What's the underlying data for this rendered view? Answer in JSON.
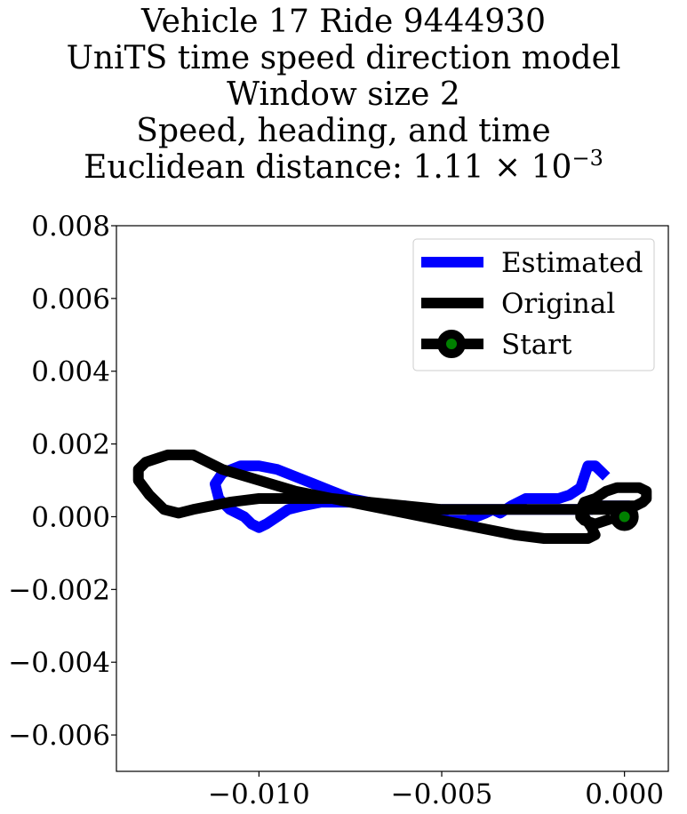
{
  "chart_data": {
    "type": "line",
    "title_lines": [
      "Vehicle 17 Ride 9444930",
      "UniTS time speed direction model",
      "Window size 2",
      "Speed, heading, and time"
    ],
    "title_metric_prefix": "Euclidean distance: 1.11",
    "title_metric_times": "×",
    "title_metric_base": "10",
    "title_metric_exponent": "−3",
    "xlabel": "",
    "ylabel": "",
    "xlim": [
      -0.0139,
      0.0012
    ],
    "ylim": [
      -0.007,
      0.008
    ],
    "x_ticks": [
      -0.01,
      -0.005,
      0.0
    ],
    "x_tick_labels": [
      "−0.010",
      "−0.005",
      "0.000"
    ],
    "y_ticks": [
      0.008,
      0.006,
      0.004,
      0.002,
      0.0,
      -0.002,
      -0.004,
      -0.006
    ],
    "y_tick_labels": [
      "0.008",
      "0.006",
      "0.004",
      "0.002",
      "0.000",
      "−0.002",
      "−0.004",
      "−0.006"
    ],
    "grid": false,
    "legend_position": "top-right",
    "series": [
      {
        "name": "Estimated",
        "color": "#0000ff",
        "x": [
          0.0,
          -0.0003,
          -0.0006,
          -0.0009,
          -0.0011,
          -0.0014,
          -0.0017,
          -0.002,
          -0.0023,
          -0.0025,
          -0.0028,
          -0.0032,
          -0.0036,
          -0.004,
          -0.0045,
          -0.005,
          -0.0055,
          -0.006,
          -0.0065,
          -0.007,
          -0.0075,
          -0.008,
          -0.0085,
          -0.009,
          -0.0095,
          -0.01,
          -0.0105,
          -0.011,
          -0.0112,
          -0.0111,
          -0.0108,
          -0.0104,
          -0.0102,
          -0.01,
          -0.0098,
          -0.0095,
          -0.0092,
          -0.0088,
          -0.0083,
          -0.0078,
          -0.0073,
          -0.0068,
          -0.0063,
          -0.0058,
          -0.0053,
          -0.0048,
          -0.0043,
          -0.0038,
          -0.0036,
          -0.0034,
          -0.0031,
          -0.0027,
          -0.0022,
          -0.0018,
          -0.0015,
          -0.0012,
          -0.0011,
          -0.001,
          -0.0008,
          -0.0006
        ],
        "y": [
          0.0003,
          0.0003,
          0.0003,
          0.0002,
          0.0002,
          0.0002,
          0.0002,
          0.0002,
          0.0002,
          0.0002,
          0.0002,
          0.0002,
          0.0002,
          0.0002,
          0.0002,
          0.0002,
          0.0002,
          0.0003,
          0.0003,
          0.0004,
          0.0005,
          0.0007,
          0.0009,
          0.0011,
          0.0013,
          0.0014,
          0.0014,
          0.0012,
          0.0009,
          0.0005,
          0.0002,
          0.0,
          -0.0002,
          -0.0003,
          -0.0002,
          0.0,
          0.0002,
          0.0003,
          0.0004,
          0.0004,
          0.0004,
          0.0003,
          0.0002,
          0.0001,
          0.0,
          -0.0001,
          -0.0001,
          0.0001,
          0.0002,
          0.0001,
          0.0003,
          0.0005,
          0.0005,
          0.0005,
          0.0006,
          0.0008,
          0.0011,
          0.0014,
          0.0014,
          0.0012
        ]
      },
      {
        "name": "Original",
        "color": "#000000",
        "x": [
          0.0,
          -0.0003,
          -0.0007,
          -0.0011,
          -0.0011,
          -0.0009,
          -0.0008,
          -0.001,
          -0.0015,
          -0.0022,
          -0.003,
          -0.004,
          -0.005,
          -0.006,
          -0.007,
          -0.008,
          -0.009,
          -0.01,
          -0.011,
          -0.0118,
          -0.0125,
          -0.0131,
          -0.0133,
          -0.0133,
          -0.013,
          -0.0126,
          -0.0122,
          -0.0118,
          -0.0113,
          -0.0108,
          -0.01,
          -0.009,
          -0.008,
          -0.007,
          -0.006,
          -0.005,
          -0.004,
          -0.003,
          -0.002,
          -0.0012,
          -0.0006,
          -0.0002,
          0.0001,
          0.0003,
          0.0005,
          0.0006,
          0.0006,
          0.0004,
          0.0001,
          -0.0002,
          -0.0005,
          -0.0008,
          -0.0011,
          -0.0012,
          -0.0012,
          -0.0011,
          -0.0008,
          -0.0005
        ],
        "y": [
          0.0003,
          0.0003,
          0.0003,
          0.0002,
          0.0,
          -0.0003,
          -0.0005,
          -0.0006,
          -0.0006,
          -0.0006,
          -0.0005,
          -0.0003,
          -0.0001,
          0.0001,
          0.0003,
          0.0005,
          0.0007,
          0.001,
          0.0013,
          0.0017,
          0.0017,
          0.0015,
          0.0013,
          0.001,
          0.0006,
          0.0002,
          0.0001,
          0.0002,
          0.0003,
          0.0004,
          0.0005,
          0.0005,
          0.0005,
          0.0004,
          0.0003,
          0.0002,
          0.0002,
          0.0002,
          0.0002,
          0.0002,
          0.0002,
          0.0002,
          0.0003,
          0.0003,
          0.0004,
          0.0005,
          0.0007,
          0.0008,
          0.0008,
          0.0008,
          0.0007,
          0.0005,
          0.0004,
          0.0002,
          0.0,
          -0.0001,
          -0.0002,
          -0.0001
        ]
      }
    ],
    "start_marker": {
      "name": "Start",
      "x": 0.0,
      "y": 0.0,
      "edge_color": "#000000",
      "face_color": "#008000"
    }
  }
}
